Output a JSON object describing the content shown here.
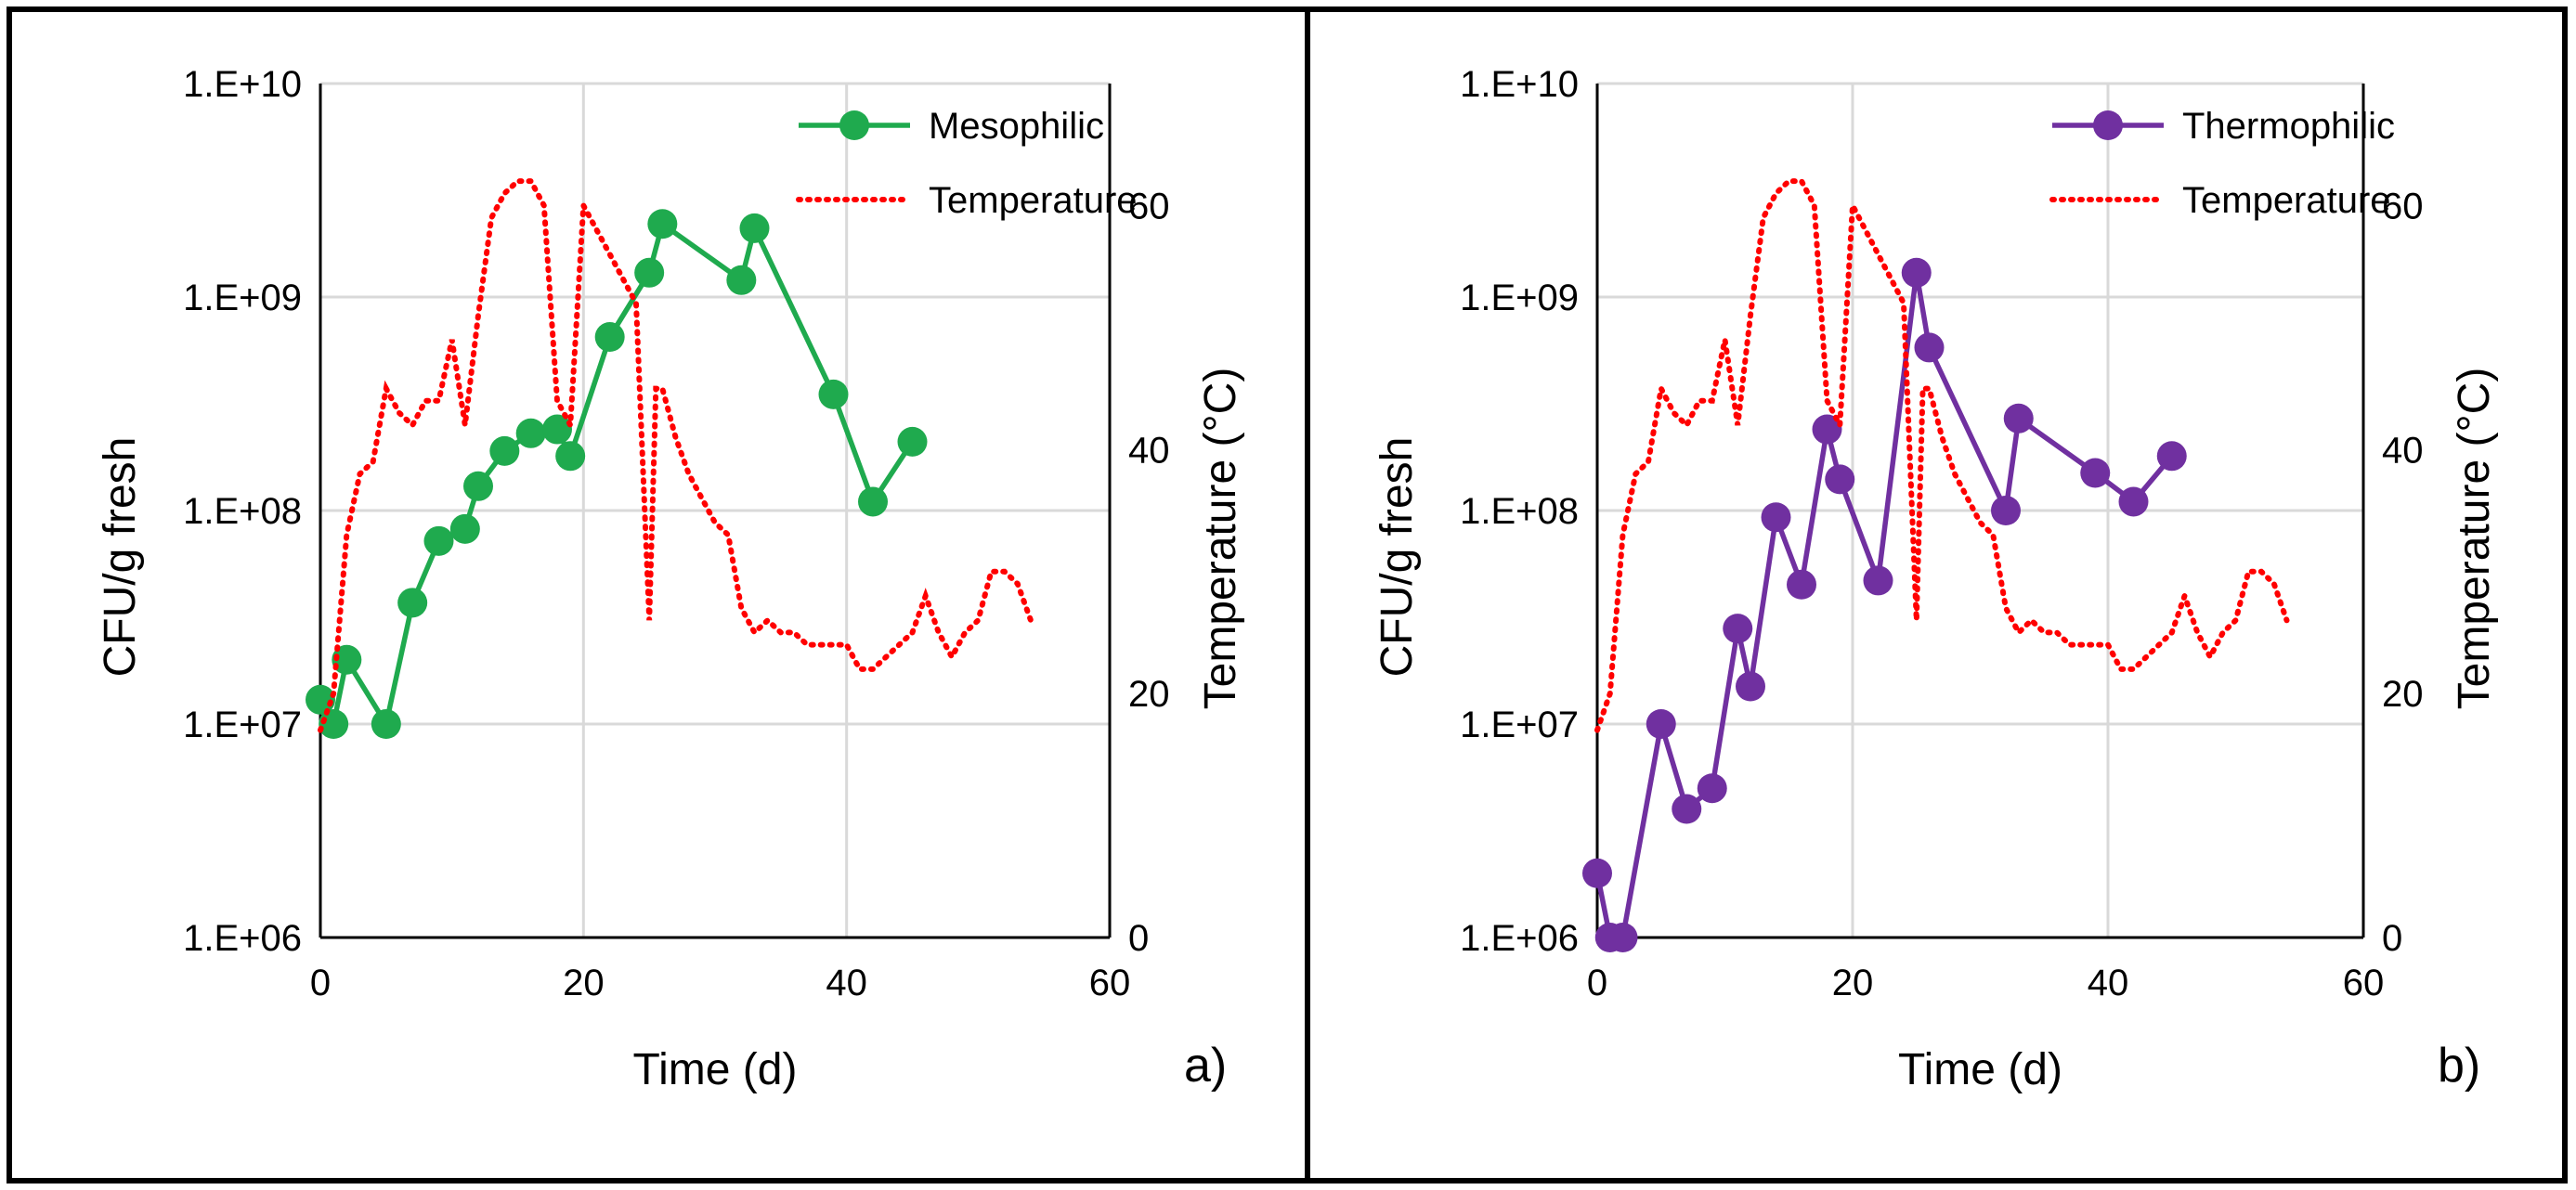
{
  "colors": {
    "mesophilic": "#1FAA4E",
    "thermophilic": "#7030A0",
    "temperature": "#FF0000",
    "grid": "#D9D9D9",
    "border": "#000000"
  },
  "chart_data": [
    {
      "type": "line",
      "panel_label": "a)",
      "xlabel": "Time (d)",
      "ylabel": "CFU/g fresh",
      "y2label": "Temperature (°C)",
      "xlim": [
        0,
        60
      ],
      "xticks": [
        "0",
        "20",
        "40",
        "60"
      ],
      "xtick_values": [
        0,
        20,
        40,
        60
      ],
      "ylim": [
        1000000,
        10000000000
      ],
      "yscale": "log",
      "yticks": [
        "1.E+06",
        "1.E+07",
        "1.E+08",
        "1.E+09",
        "1.E+10"
      ],
      "ytick_values": [
        1000000,
        10000000,
        100000000,
        1000000000,
        10000000000
      ],
      "y2lim": [
        0,
        70
      ],
      "y2ticks": [
        "0",
        "20",
        "40",
        "60"
      ],
      "y2tick_values": [
        0,
        20,
        40,
        60
      ],
      "grid": true,
      "legend_position": "top-right",
      "series": [
        {
          "name": "Mesophilic",
          "axis": "left",
          "style": "solid-markers",
          "color_key": "mesophilic",
          "x": [
            0,
            1,
            2,
            5,
            7,
            9,
            11,
            12,
            14,
            16,
            18,
            19,
            22,
            25,
            26,
            32,
            33,
            39,
            42,
            45
          ],
          "y": [
            13000000,
            10000000,
            20000000,
            10000000,
            37000000,
            72000000,
            82000000,
            130000000,
            190000000,
            230000000,
            240000000,
            180000000,
            650000000,
            1300000000,
            2200000000,
            1200000000,
            2100000000,
            350000000,
            110000000,
            210000000
          ]
        },
        {
          "name": "Temperature",
          "axis": "right",
          "style": "dotted",
          "color_key": "temperature",
          "x": [
            0,
            1,
            2,
            3,
            4,
            5,
            6,
            7,
            8,
            9,
            10,
            11,
            12,
            13,
            14,
            15,
            16,
            17,
            18,
            19,
            20,
            21,
            22,
            23,
            24,
            25,
            25.5,
            26,
            27,
            28,
            29,
            30,
            31,
            32,
            33,
            34,
            35,
            36,
            37,
            38,
            39,
            40,
            41,
            42,
            43,
            44,
            45,
            46,
            47,
            48,
            49,
            50,
            51,
            52,
            53,
            54
          ],
          "y": [
            17,
            20,
            33,
            38,
            39,
            45,
            43,
            42,
            44,
            44,
            49,
            42,
            51,
            59,
            61,
            62,
            62,
            60,
            44,
            42,
            60,
            58,
            56,
            54,
            52,
            26,
            45,
            45,
            41,
            38,
            36,
            34,
            33,
            27,
            25,
            26,
            25,
            25,
            24,
            24,
            24,
            24,
            22,
            22,
            23,
            24,
            25,
            28,
            25,
            23,
            25,
            26,
            30,
            30,
            29,
            26
          ]
        }
      ]
    },
    {
      "type": "line",
      "panel_label": "b)",
      "xlabel": "Time (d)",
      "ylabel": "CFU/g fresh",
      "y2label": "Temperature (°C)",
      "xlim": [
        0,
        60
      ],
      "xticks": [
        "0",
        "20",
        "40",
        "60"
      ],
      "xtick_values": [
        0,
        20,
        40,
        60
      ],
      "ylim": [
        1000000,
        10000000000
      ],
      "yscale": "log",
      "yticks": [
        "1.E+06",
        "1.E+07",
        "1.E+08",
        "1.E+09",
        "1.E+10"
      ],
      "ytick_values": [
        1000000,
        10000000,
        100000000,
        1000000000,
        10000000000
      ],
      "y2lim": [
        0,
        70
      ],
      "y2ticks": [
        "0",
        "20",
        "40",
        "60"
      ],
      "y2tick_values": [
        0,
        20,
        40,
        60
      ],
      "grid": true,
      "legend_position": "top-right",
      "series": [
        {
          "name": "Thermophilic",
          "axis": "left",
          "style": "solid-markers",
          "color_key": "thermophilic",
          "x": [
            0,
            1,
            2,
            5,
            7,
            9,
            11,
            12,
            14,
            16,
            18,
            19,
            22,
            25,
            26,
            32,
            33,
            39,
            42,
            45
          ],
          "y": [
            2000000,
            1000000,
            1000000,
            10000000,
            4000000,
            5000000,
            28000000,
            15000000,
            93000000,
            45000000,
            240000000,
            140000000,
            47000000,
            1300000000,
            580000000,
            100000000,
            270000000,
            150000000,
            110000000,
            180000000
          ]
        },
        {
          "name": "Temperature",
          "axis": "right",
          "style": "dotted",
          "color_key": "temperature",
          "x": [
            0,
            1,
            2,
            3,
            4,
            5,
            6,
            7,
            8,
            9,
            10,
            11,
            12,
            13,
            14,
            15,
            16,
            17,
            18,
            19,
            20,
            21,
            22,
            23,
            24,
            25,
            25.5,
            26,
            27,
            28,
            29,
            30,
            31,
            32,
            33,
            34,
            35,
            36,
            37,
            38,
            39,
            40,
            41,
            42,
            43,
            44,
            45,
            46,
            47,
            48,
            49,
            50,
            51,
            52,
            53,
            54
          ],
          "y": [
            17,
            20,
            33,
            38,
            39,
            45,
            43,
            42,
            44,
            44,
            49,
            42,
            51,
            59,
            61,
            62,
            62,
            60,
            44,
            42,
            60,
            58,
            56,
            54,
            52,
            26,
            45,
            45,
            41,
            38,
            36,
            34,
            33,
            27,
            25,
            26,
            25,
            25,
            24,
            24,
            24,
            24,
            22,
            22,
            23,
            24,
            25,
            28,
            25,
            23,
            25,
            26,
            30,
            30,
            29,
            26
          ]
        }
      ]
    }
  ]
}
